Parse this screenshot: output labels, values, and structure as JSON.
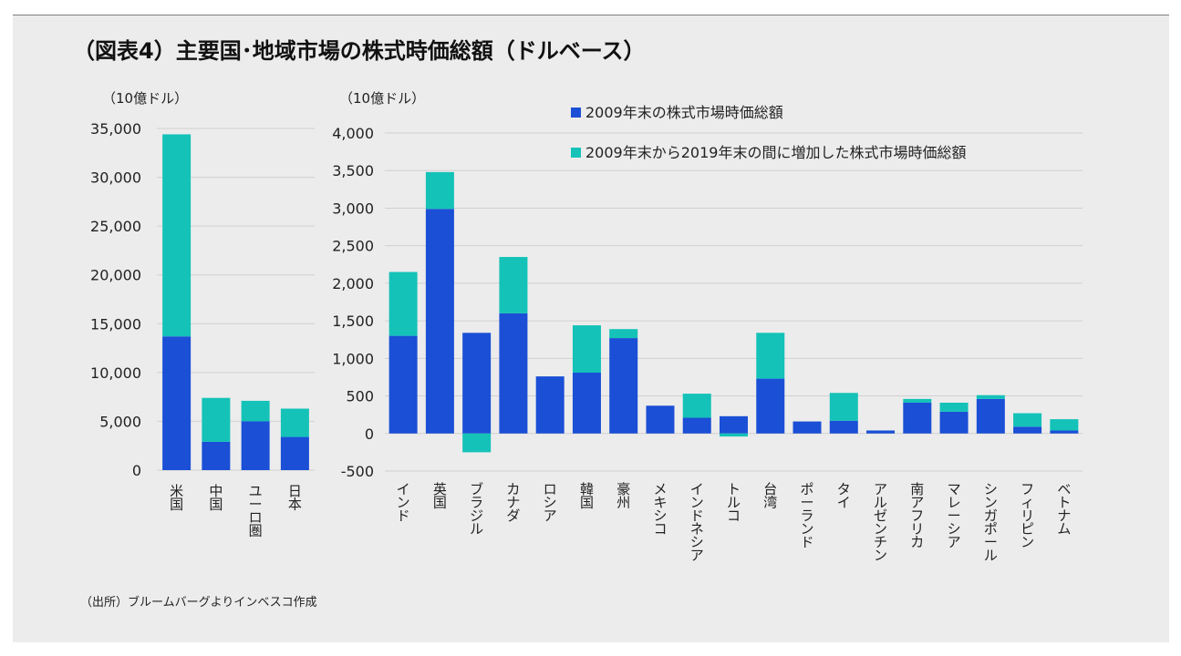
{
  "title": "（図表4）主要国･地域市場の株式時価総額（ドルベース）",
  "source": "（出所）ブルームバーグよりインベスコ作成",
  "colors": {
    "base": "#1a4fd6",
    "increase": "#14c2b8",
    "negative_tick": "#e02020",
    "grid": "#d0d0d0"
  },
  "chart_data": [
    {
      "type": "bar",
      "stacked": true,
      "unit_label": "（10億ドル）",
      "ylim": [
        0,
        35000
      ],
      "yticks": [
        0,
        5000,
        10000,
        15000,
        20000,
        25000,
        30000,
        35000
      ],
      "ytick_labels": [
        "0",
        "5,000",
        "10,000",
        "15,000",
        "20,000",
        "25,000",
        "30,000",
        "35,000"
      ],
      "categories": [
        "米国",
        "中国",
        "ユーロ圏",
        "日本"
      ],
      "series": [
        {
          "name": "2009年末の株式市場時価総額",
          "values": [
            13700,
            2900,
            5000,
            3400
          ]
        },
        {
          "name": "2009年末から2019年末の間に増加した株式市場時価総額",
          "values": [
            20700,
            4500,
            2100,
            2900
          ]
        }
      ],
      "grid": true
    },
    {
      "type": "bar",
      "stacked": true,
      "unit_label": "（10億ドル）",
      "ylim": [
        -500,
        4000
      ],
      "yticks": [
        -500,
        0,
        500,
        1000,
        1500,
        2000,
        2500,
        3000,
        3500,
        4000
      ],
      "ytick_labels": [
        "-500",
        "0",
        "500",
        "1,000",
        "1,500",
        "2,000",
        "2,500",
        "3,000",
        "3,500",
        "4,000"
      ],
      "categories": [
        "インド",
        "英国",
        "ブラジル",
        "カナダ",
        "ロシア",
        "韓国",
        "豪州",
        "メキシコ",
        "インドネシア",
        "トルコ",
        "台湾",
        "ポーランド",
        "タイ",
        "アルゼンチン",
        "南アフリカ",
        "マレーシア",
        "シンガポール",
        "フィリピン",
        "ベトナム"
      ],
      "series": [
        {
          "name": "2009年末の株式市場時価総額",
          "values": [
            1300,
            2990,
            1340,
            1600,
            760,
            810,
            1270,
            370,
            210,
            230,
            730,
            160,
            170,
            40,
            410,
            290,
            460,
            90,
            40
          ]
        },
        {
          "name": "2009年末から2019年末の間に増加した株式市場時価総額",
          "values": [
            850,
            490,
            -250,
            750,
            0,
            630,
            120,
            0,
            320,
            -40,
            610,
            0,
            370,
            0,
            50,
            120,
            50,
            180,
            150
          ]
        }
      ],
      "legend_position": "top-right",
      "grid": true
    }
  ]
}
